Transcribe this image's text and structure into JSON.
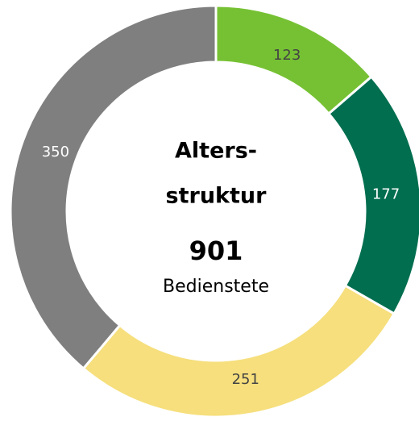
{
  "chart_data": {
    "type": "donut",
    "title": [
      "Alters-",
      "struktur"
    ],
    "total": 901,
    "total_label": "Bedienstete",
    "categories": [
      null,
      null,
      null,
      null
    ],
    "values": [
      123,
      177,
      251,
      350
    ],
    "colors": [
      "#76c133",
      "#006e4f",
      "#f6df7c",
      "#7f7f7f"
    ],
    "label_colors": [
      "#444444",
      "#ffffff",
      "#444444",
      "#ffffff"
    ]
  }
}
